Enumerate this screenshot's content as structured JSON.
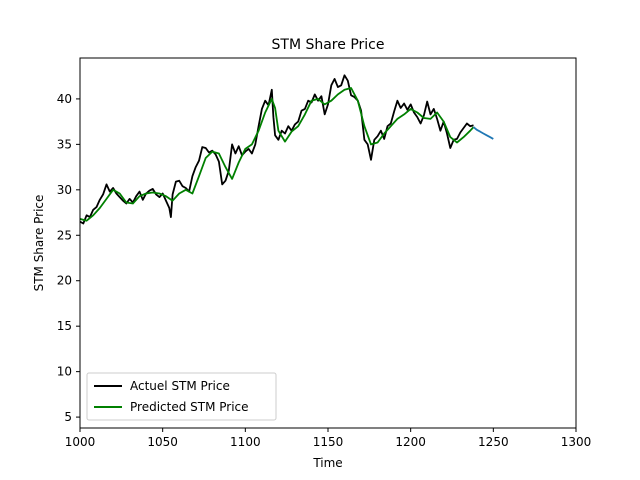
{
  "chart_data": {
    "type": "line",
    "title": "STM Share Price",
    "xlabel": "Time",
    "ylabel": "STM Share Price",
    "xlim": [
      1000,
      1300
    ],
    "ylim": [
      3.8,
      44.5
    ],
    "xticks": [
      1000,
      1050,
      1100,
      1150,
      1200,
      1250,
      1300
    ],
    "yticks": [
      5,
      10,
      15,
      20,
      25,
      30,
      35,
      40
    ],
    "grid": false,
    "legend": {
      "position": "lower-left",
      "entries": [
        "Actuel STM Price",
        "Predicted STM Price"
      ]
    },
    "series": [
      {
        "name": "Actuel STM Price",
        "color": "#000000",
        "x": [
          1000,
          1002,
          1004,
          1006,
          1008,
          1010,
          1012,
          1014,
          1016,
          1018,
          1020,
          1022,
          1024,
          1026,
          1028,
          1030,
          1032,
          1034,
          1036,
          1038,
          1040,
          1042,
          1044,
          1046,
          1048,
          1050,
          1052,
          1054,
          1055,
          1056,
          1058,
          1060,
          1062,
          1064,
          1066,
          1068,
          1070,
          1072,
          1074,
          1076,
          1078,
          1080,
          1082,
          1084,
          1086,
          1088,
          1090,
          1092,
          1094,
          1096,
          1098,
          1100,
          1102,
          1104,
          1106,
          1108,
          1110,
          1112,
          1114,
          1116,
          1117,
          1118,
          1120,
          1122,
          1124,
          1126,
          1128,
          1130,
          1132,
          1134,
          1136,
          1138,
          1140,
          1142,
          1144,
          1146,
          1148,
          1150,
          1152,
          1154,
          1156,
          1158,
          1160,
          1162,
          1164,
          1166,
          1168,
          1170,
          1172,
          1174,
          1176,
          1178,
          1180,
          1182,
          1184,
          1186,
          1188,
          1190,
          1192,
          1194,
          1196,
          1198,
          1200,
          1202,
          1204,
          1206,
          1208,
          1210,
          1212,
          1214,
          1216,
          1218,
          1220,
          1222,
          1224,
          1226,
          1228,
          1230,
          1232,
          1234,
          1236,
          1238
        ],
        "values": [
          26.5,
          26.3,
          27.2,
          27.0,
          27.8,
          28.1,
          28.9,
          29.5,
          30.6,
          29.8,
          30.2,
          29.6,
          29.2,
          28.8,
          28.5,
          29.0,
          28.6,
          29.3,
          29.8,
          28.9,
          29.6,
          29.9,
          30.1,
          29.5,
          29.2,
          29.6,
          28.8,
          28.0,
          27.0,
          29.5,
          30.9,
          31.0,
          30.4,
          30.2,
          29.8,
          31.5,
          32.5,
          33.2,
          34.7,
          34.6,
          34.1,
          34.3,
          33.9,
          33.1,
          30.6,
          31.0,
          32.1,
          35.0,
          34.0,
          34.8,
          33.8,
          34.2,
          34.5,
          34.0,
          35.0,
          37.0,
          38.9,
          39.8,
          39.3,
          41.0,
          38.0,
          36.0,
          35.5,
          36.5,
          36.2,
          37.0,
          36.5,
          37.2,
          37.5,
          38.7,
          38.9,
          39.8,
          39.6,
          40.5,
          39.8,
          40.3,
          38.3,
          39.4,
          41.5,
          42.2,
          41.3,
          41.5,
          42.6,
          42.0,
          40.4,
          40.2,
          39.8,
          38.7,
          35.5,
          35.0,
          33.3,
          35.5,
          35.9,
          36.5,
          35.6,
          37.0,
          37.3,
          38.6,
          39.8,
          39.0,
          39.5,
          38.8,
          39.4,
          38.5,
          38.0,
          37.3,
          38.2,
          39.7,
          38.3,
          38.9,
          37.8,
          36.5,
          37.5,
          36.2,
          34.6,
          35.5,
          35.6,
          36.3,
          36.8,
          37.3,
          37.0,
          37.1
        ]
      },
      {
        "name": "Predicted STM Price",
        "color": "#008000",
        "x": [
          1000,
          1004,
          1008,
          1012,
          1016,
          1020,
          1024,
          1028,
          1032,
          1036,
          1040,
          1044,
          1048,
          1052,
          1056,
          1060,
          1064,
          1068,
          1072,
          1076,
          1080,
          1084,
          1088,
          1092,
          1096,
          1100,
          1104,
          1108,
          1112,
          1116,
          1118,
          1120,
          1124,
          1128,
          1132,
          1136,
          1140,
          1144,
          1148,
          1152,
          1156,
          1160,
          1164,
          1168,
          1172,
          1176,
          1180,
          1184,
          1188,
          1192,
          1196,
          1200,
          1204,
          1208,
          1212,
          1216,
          1220,
          1224,
          1228,
          1232,
          1236,
          1238
        ],
        "values": [
          26.8,
          26.6,
          27.2,
          28.0,
          29.0,
          30.0,
          29.6,
          28.6,
          28.5,
          29.3,
          29.6,
          29.7,
          29.6,
          29.3,
          28.8,
          29.6,
          30.0,
          29.6,
          31.5,
          33.5,
          34.2,
          34.0,
          32.5,
          31.2,
          33.0,
          34.5,
          35.0,
          36.5,
          38.5,
          40.0,
          39.0,
          36.5,
          35.3,
          36.4,
          37.0,
          38.3,
          39.8,
          40.0,
          39.4,
          39.8,
          40.5,
          41.0,
          41.2,
          39.8,
          37.0,
          35.0,
          35.2,
          36.2,
          37.0,
          37.8,
          38.3,
          38.9,
          38.5,
          37.9,
          37.8,
          38.5,
          37.5,
          35.8,
          35.2,
          35.8,
          36.5,
          36.9
        ]
      },
      {
        "name": "",
        "color": "#1f77b4",
        "x": [
          1238,
          1240,
          1242,
          1244,
          1246,
          1248,
          1250
        ],
        "values": [
          36.9,
          36.6,
          36.4,
          36.2,
          36.0,
          35.8,
          35.6
        ]
      }
    ]
  }
}
